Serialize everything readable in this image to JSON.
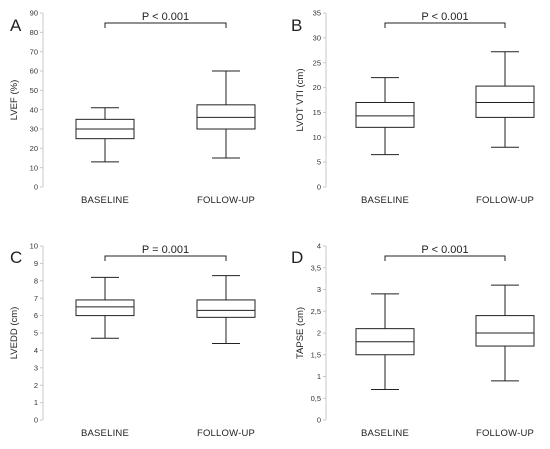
{
  "chart_data": [
    {
      "type": "box",
      "panel": "A",
      "ylabel": "LVEF (%)",
      "ylim": [
        0,
        90
      ],
      "yticks": [
        "0",
        "10",
        "20",
        "30",
        "40",
        "50",
        "60",
        "70",
        "80",
        "90"
      ],
      "categories": [
        "BASELINE",
        "FOLLOW-UP"
      ],
      "boxes": [
        {
          "min": 13,
          "q1": 25,
          "median": 30,
          "q3": 35,
          "max": 41
        },
        {
          "min": 15,
          "q1": 30,
          "median": 36,
          "q3": 42.5,
          "max": 60
        }
      ],
      "annotation": "P < 0.001"
    },
    {
      "type": "box",
      "panel": "B",
      "ylabel": "LVOT VTI (cm)",
      "ylim": [
        0,
        35
      ],
      "yticks": [
        "0",
        "5",
        "10",
        "15",
        "20",
        "25",
        "30",
        "35"
      ],
      "categories": [
        "BASELINE",
        "FOLLOW-UP"
      ],
      "boxes": [
        {
          "min": 6.5,
          "q1": 12,
          "median": 14.3,
          "q3": 17,
          "max": 22
        },
        {
          "min": 8,
          "q1": 14,
          "median": 17,
          "q3": 20.3,
          "max": 27.2
        }
      ],
      "annotation": "P < 0.001"
    },
    {
      "type": "box",
      "panel": "C",
      "ylabel": "LVEDD (cm)",
      "ylim": [
        0,
        10
      ],
      "yticks": [
        "0",
        "1",
        "2",
        "3",
        "4",
        "5",
        "6",
        "7",
        "8",
        "9",
        "10"
      ],
      "categories": [
        "BASELINE",
        "FOLLOW-UP"
      ],
      "boxes": [
        {
          "min": 4.7,
          "q1": 6,
          "median": 6.5,
          "q3": 6.9,
          "max": 8.2
        },
        {
          "min": 4.4,
          "q1": 5.9,
          "median": 6.3,
          "q3": 6.9,
          "max": 8.3
        }
      ],
      "annotation": "P = 0.001"
    },
    {
      "type": "box",
      "panel": "D",
      "ylabel": "TAPSE (cm)",
      "ylim": [
        0,
        4
      ],
      "yticks": [
        "0",
        "0,5",
        "1",
        "1,5",
        "2",
        "2,5",
        "3",
        "3,5",
        "4"
      ],
      "categories": [
        "BASELINE",
        "FOLLOW-UP"
      ],
      "boxes": [
        {
          "min": 0.7,
          "q1": 1.5,
          "median": 1.8,
          "q3": 2.1,
          "max": 2.9
        },
        {
          "min": 0.9,
          "q1": 1.7,
          "median": 2.0,
          "q3": 2.4,
          "max": 3.1
        }
      ],
      "annotation": "P < 0.001"
    }
  ]
}
